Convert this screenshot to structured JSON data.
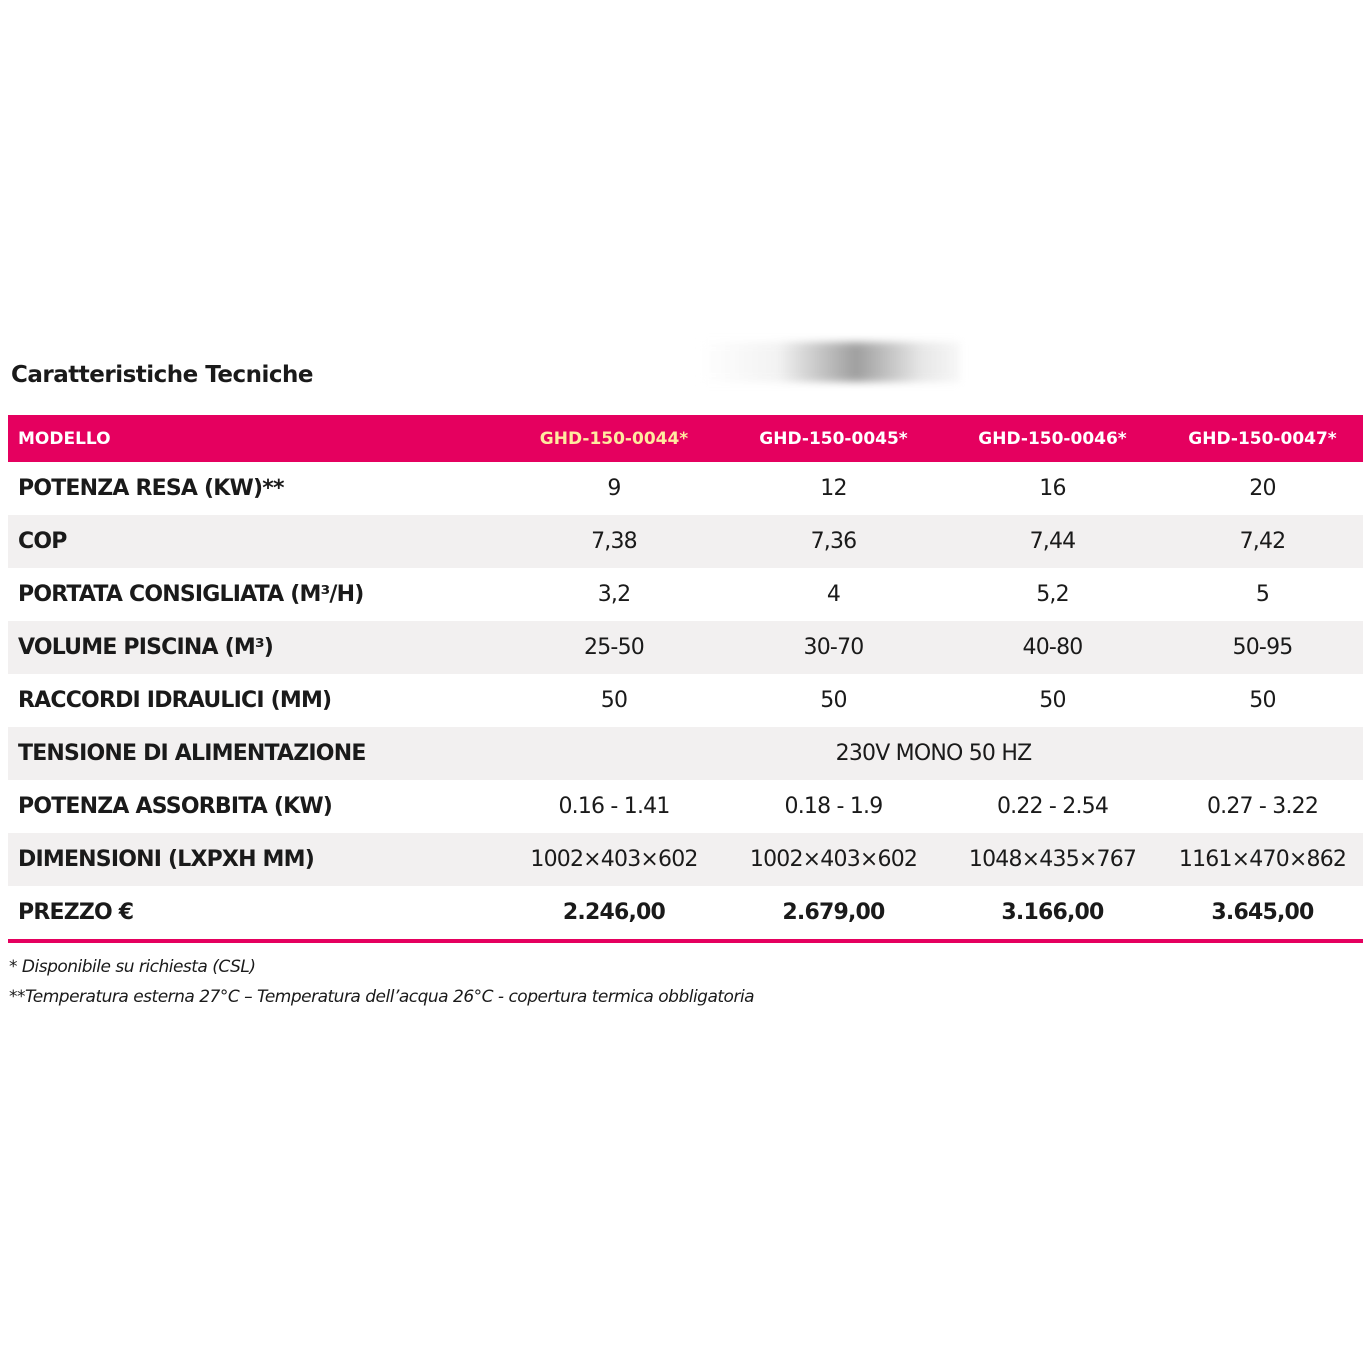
{
  "title": "Caratteristiche Tecniche",
  "table": {
    "header": [
      "MODELLO",
      "GHD-150-0044*",
      "GHD-150-0045*",
      "GHD-150-0046*",
      "GHD-150-0047*"
    ],
    "rows": [
      [
        "POTENZA RESA (KW)**",
        "9",
        "12",
        "16",
        "20"
      ],
      [
        "COP",
        "7,38",
        "7,36",
        "7,44",
        "7,42"
      ],
      [
        "PORTATA CONSIGLIATA (M³/H)",
        "3,2",
        "4",
        "5,2",
        "5"
      ],
      [
        "VOLUME PISCINA (M³)",
        "25-50",
        "30-70",
        "40-80",
        "50-95"
      ],
      [
        "RACCORDI IDRAULICI (MM)",
        "50",
        "50",
        "50",
        "50"
      ],
      [
        "TENSIONE DI ALIMENTAZIONE",
        "230V MONO 50 HZ"
      ],
      [
        "POTENZA ASSORBITA (KW)",
        "0.16 - 1.41",
        "0.18 - 1.9",
        "0.22 - 2.54",
        "0.27 - 3.22"
      ],
      [
        "DIMENSIONI (LXPXH MM)",
        "1002×403×602",
        "1002×403×602",
        "1048×435×767",
        "1161×470×862"
      ],
      [
        "PREZZO €",
        "2.246,00",
        "2.679,00",
        "3.166,00",
        "3.645,00"
      ]
    ]
  },
  "footnotes": [
    "* Disponibile su richiesta (CSL)",
    "**Temperatura esterna 27°C – Temperatura dell’acqua 26°C - copertura termica obbligatoria"
  ]
}
